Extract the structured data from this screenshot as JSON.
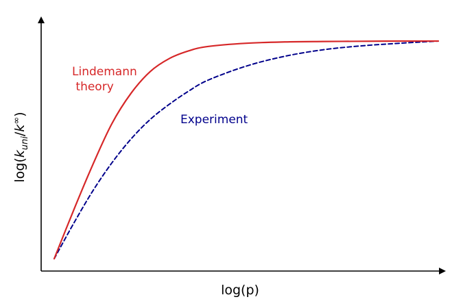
{
  "chart_data": {
    "type": "line",
    "title": "",
    "xlabel": "log(p)",
    "ylabel": {
      "prefix": "log(",
      "k": "k",
      "sub": "uni",
      "slash": "/",
      "k2": "k",
      "sup": "∞",
      "suffix": ")"
    },
    "ticks": "none",
    "grid": false,
    "xlim": [
      0,
      10
    ],
    "ylim": [
      0,
      1
    ],
    "x": [
      0,
      0.5,
      1,
      1.5,
      2,
      2.5,
      3,
      3.5,
      4,
      5,
      6,
      7,
      8,
      9,
      10
    ],
    "series": [
      {
        "name": "Lindemann theory",
        "label_lines": [
          "Lindemann",
          " theory"
        ],
        "color": "#d62728",
        "style": "solid",
        "values": [
          0.0,
          0.22,
          0.43,
          0.62,
          0.76,
          0.86,
          0.92,
          0.955,
          0.975,
          0.99,
          0.996,
          0.998,
          0.999,
          1.0,
          1.0
        ]
      },
      {
        "name": "Experiment",
        "label_lines": [
          "Experiment"
        ],
        "color": "#00008b",
        "style": "dashed",
        "values": [
          0.0,
          0.16,
          0.31,
          0.44,
          0.55,
          0.64,
          0.71,
          0.77,
          0.82,
          0.885,
          0.93,
          0.96,
          0.978,
          0.99,
          1.0
        ]
      }
    ]
  }
}
